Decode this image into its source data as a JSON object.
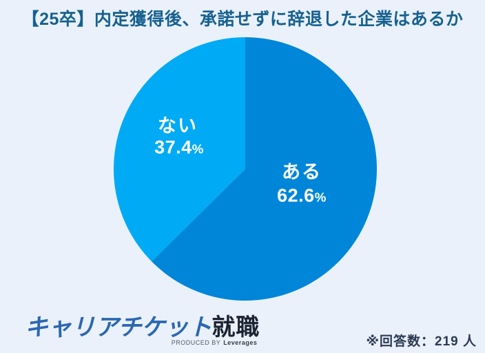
{
  "page": {
    "background_color": "#eaf1fb"
  },
  "title": {
    "text": "【25卒】内定獲得後、承諾せずに辞退した企業はあるか",
    "color": "#17618f"
  },
  "chart_data": {
    "type": "pie",
    "title": "【25卒】内定獲得後、承諾せずに辞退した企業はあるか",
    "start_angle_deg": -90,
    "direction": "clockwise",
    "label_color": "#ffffff",
    "percent_sign": "%",
    "slices": [
      {
        "label": "ある",
        "value": 62.6,
        "value_label": "62.6",
        "color": "#0086d8"
      },
      {
        "label": "ない",
        "value": 37.4,
        "value_label": "37.4",
        "color": "#00aaf5"
      }
    ]
  },
  "footer": {
    "logo": {
      "brand_main": "キャリアチケット",
      "brand_suffix": "就職",
      "produced_by": "PRODUCED BY",
      "producer": "Leverages"
    },
    "note": "※回答数：219 人"
  }
}
